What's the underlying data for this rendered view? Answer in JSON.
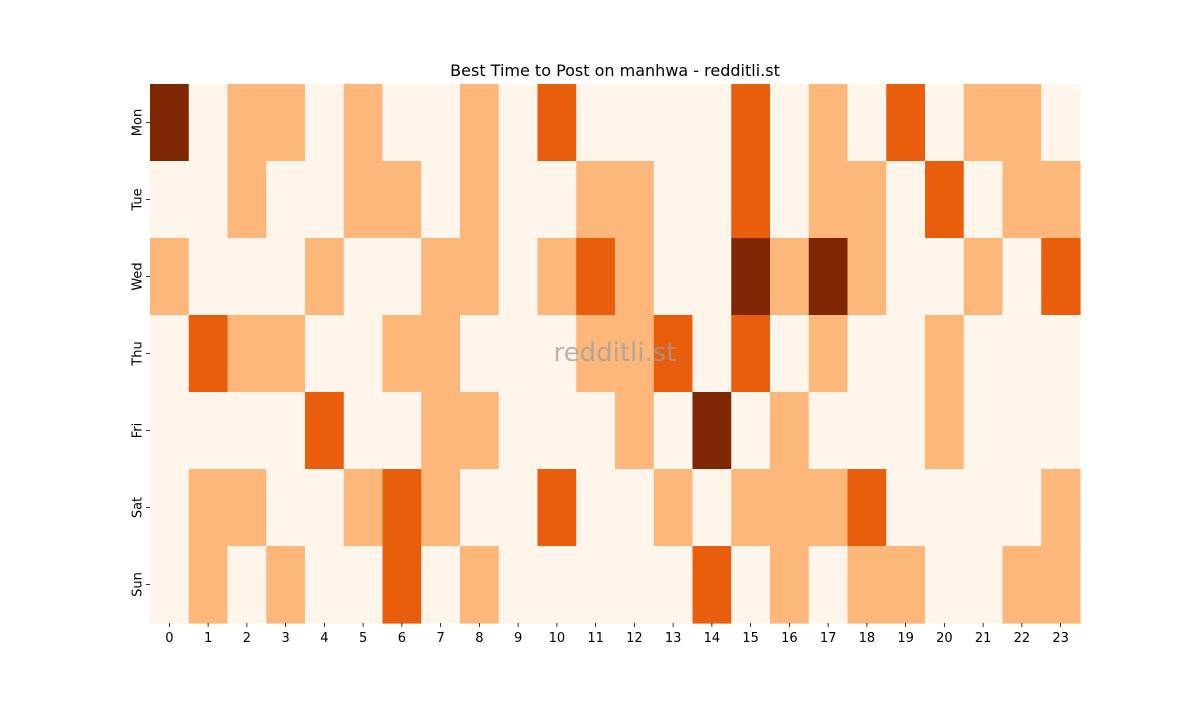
{
  "chart_data": {
    "type": "heatmap",
    "title": "Best Time to Post on manhwa - redditli.st",
    "xlabel": "",
    "ylabel": "",
    "x_categories": [
      "0",
      "1",
      "2",
      "3",
      "4",
      "5",
      "6",
      "7",
      "8",
      "9",
      "10",
      "11",
      "12",
      "13",
      "14",
      "15",
      "16",
      "17",
      "18",
      "19",
      "20",
      "21",
      "22",
      "23"
    ],
    "y_categories": [
      "Mon",
      "Tue",
      "Wed",
      "Thu",
      "Fri",
      "Sat",
      "Sun"
    ],
    "values": [
      [
        3,
        0,
        1,
        1,
        0,
        1,
        0,
        0,
        1,
        0,
        2,
        0,
        0,
        0,
        0,
        2,
        0,
        1,
        0,
        2,
        0,
        1,
        1,
        0
      ],
      [
        0,
        0,
        1,
        0,
        0,
        1,
        1,
        0,
        1,
        0,
        0,
        1,
        1,
        0,
        0,
        2,
        0,
        1,
        1,
        0,
        2,
        0,
        1,
        1
      ],
      [
        1,
        0,
        0,
        0,
        1,
        0,
        0,
        1,
        1,
        0,
        1,
        2,
        1,
        0,
        0,
        3,
        1,
        3,
        1,
        0,
        0,
        1,
        0,
        2
      ],
      [
        0,
        2,
        1,
        1,
        0,
        0,
        1,
        1,
        0,
        0,
        0,
        1,
        1,
        2,
        0,
        2,
        0,
        1,
        0,
        0,
        1,
        0,
        0,
        0
      ],
      [
        0,
        0,
        0,
        0,
        2,
        0,
        0,
        1,
        1,
        0,
        0,
        0,
        1,
        0,
        3,
        0,
        1,
        0,
        0,
        0,
        1,
        0,
        0,
        0
      ],
      [
        0,
        1,
        1,
        0,
        0,
        1,
        2,
        1,
        0,
        0,
        2,
        0,
        0,
        1,
        0,
        1,
        1,
        1,
        2,
        0,
        0,
        0,
        0,
        1
      ],
      [
        0,
        1,
        0,
        1,
        0,
        0,
        2,
        0,
        1,
        0,
        0,
        0,
        0,
        0,
        2,
        0,
        1,
        0,
        1,
        1,
        0,
        0,
        1,
        1
      ]
    ],
    "value_range": [
      0,
      3
    ],
    "colormap": {
      "0": "#fff5eb",
      "1": "#fdb77a",
      "2": "#e95e0d",
      "3": "#7f2704"
    },
    "colorbar": false,
    "grid": false,
    "watermark": "redditli.st"
  }
}
